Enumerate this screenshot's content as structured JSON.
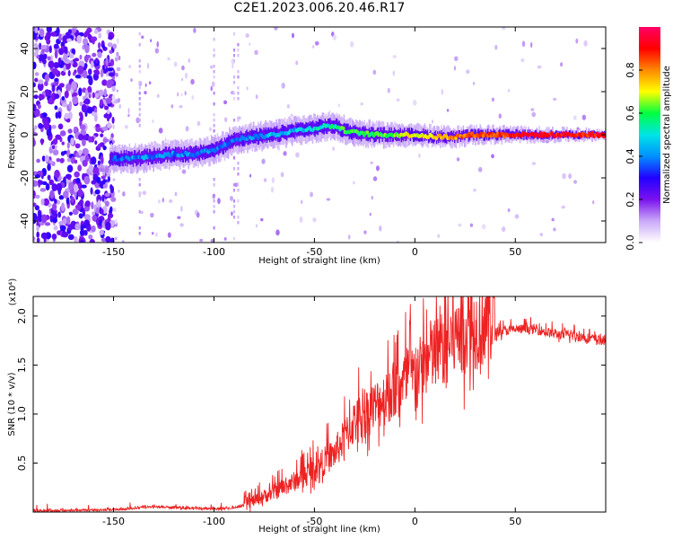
{
  "title": "C2E1.2023.006.20.46.R17",
  "colors": {
    "snr_line": "#ee2222",
    "frame": "#000000",
    "colormap": [
      "#ffffff",
      "#c9a9f7",
      "#7a12ee",
      "#2200ff",
      "#0090ff",
      "#00e5e5",
      "#00ff40",
      "#ffff00",
      "#ff8800",
      "#ff0000",
      "#ff0066"
    ]
  },
  "chart_data": [
    {
      "type": "heatmap",
      "name": "spectrogram",
      "xlabel": "Height of straight line (km)",
      "ylabel": "Frequency (Hz)",
      "xlim": [
        -190,
        95
      ],
      "ylim": [
        -50,
        50
      ],
      "xticks": [
        -150,
        -100,
        -50,
        0,
        50
      ],
      "yticks": [
        -40,
        -20,
        0,
        20,
        40
      ],
      "colorbar": {
        "label": "Normalized spectral amplitude",
        "range": [
          0.0,
          1.0
        ],
        "ticks": [
          "0.0",
          "0.2",
          "0.4",
          "0.6",
          "0.8"
        ]
      },
      "ridge": {
        "x": [
          -150,
          -140,
          -130,
          -120,
          -110,
          -100,
          -95,
          -90,
          -80,
          -70,
          -60,
          -50,
          -45,
          -40,
          -35,
          -30,
          -20,
          -10,
          0,
          10,
          20,
          30,
          40,
          50,
          60,
          70,
          80,
          90,
          95
        ],
        "frequency": [
          -11,
          -11,
          -10,
          -9,
          -9,
          -7,
          -5,
          -2,
          -1,
          0,
          2,
          3,
          4,
          4,
          2,
          1,
          0,
          0,
          0,
          -1,
          -1,
          0,
          0,
          0,
          0,
          0,
          0,
          0,
          0
        ],
        "amplitude": [
          0.35,
          0.4,
          0.4,
          0.4,
          0.4,
          0.4,
          0.4,
          0.4,
          0.4,
          0.45,
          0.45,
          0.5,
          0.5,
          0.55,
          0.6,
          0.6,
          0.6,
          0.65,
          0.7,
          0.75,
          0.8,
          0.85,
          0.85,
          0.9,
          0.9,
          0.9,
          0.9,
          0.9,
          0.9
        ]
      },
      "noise_region_x": [
        -190,
        -150
      ]
    },
    {
      "type": "line",
      "name": "snr",
      "xlabel": "Height of straight line (km)",
      "ylabel": "SNR (10 * v/v)",
      "y_scale_note": "(x10⁴)",
      "xlim": [
        -190,
        95
      ],
      "ylim": [
        0,
        2.2
      ],
      "xticks": [
        -150,
        -100,
        -50,
        0,
        50
      ],
      "yticks": [
        "0.5",
        "1.0",
        "1.5",
        "2.0"
      ],
      "envelope": {
        "x": [
          -190,
          -150,
          -130,
          -100,
          -90,
          -80,
          -70,
          -60,
          -50,
          -40,
          -30,
          -20,
          -10,
          0,
          10,
          20,
          30,
          40,
          50,
          60,
          70,
          80,
          90,
          95
        ],
        "y": [
          0.01,
          0.02,
          0.05,
          0.03,
          0.04,
          0.1,
          0.18,
          0.28,
          0.4,
          0.55,
          0.85,
          1.0,
          1.15,
          1.3,
          1.5,
          1.65,
          1.75,
          1.82,
          1.85,
          1.85,
          1.8,
          1.78,
          1.75,
          1.72
        ]
      }
    }
  ]
}
